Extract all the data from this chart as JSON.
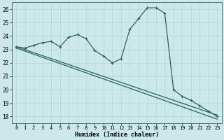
{
  "title": "",
  "xlabel": "Humidex (Indice chaleur)",
  "xlim": [
    -0.5,
    23.5
  ],
  "ylim": [
    17.5,
    26.5
  ],
  "xticks": [
    0,
    1,
    2,
    3,
    4,
    5,
    6,
    7,
    8,
    9,
    10,
    11,
    12,
    13,
    14,
    15,
    16,
    17,
    18,
    19,
    20,
    21,
    22,
    23
  ],
  "yticks": [
    18,
    19,
    20,
    21,
    22,
    23,
    24,
    25,
    26
  ],
  "bg_color": "#cce8e8",
  "line_color": "#2a6060",
  "grid_color": "#aad4d4",
  "main_curve_x": [
    0,
    1,
    2,
    3,
    4,
    5,
    6,
    7,
    8,
    9,
    10,
    11,
    12,
    13,
    14,
    15,
    16,
    17,
    18,
    19,
    20,
    21,
    22,
    23
  ],
  "main_curve_y": [
    23.2,
    23.1,
    23.3,
    23.5,
    23.6,
    23.2,
    23.9,
    24.1,
    23.8,
    22.9,
    22.5,
    22.0,
    22.3,
    24.5,
    25.3,
    26.1,
    26.1,
    25.7,
    20.0,
    19.5,
    19.2,
    18.8,
    18.4,
    18.0
  ],
  "trend1_x": [
    0,
    23
  ],
  "trend1_y": [
    23.2,
    18.1
  ],
  "trend2_x": [
    0,
    23
  ],
  "trend2_y": [
    23.1,
    17.8
  ],
  "xticklabel_fontsize": 5.0,
  "yticklabel_fontsize": 5.5,
  "xlabel_fontsize": 6.0,
  "linewidth": 0.9,
  "marker_size": 3.0
}
